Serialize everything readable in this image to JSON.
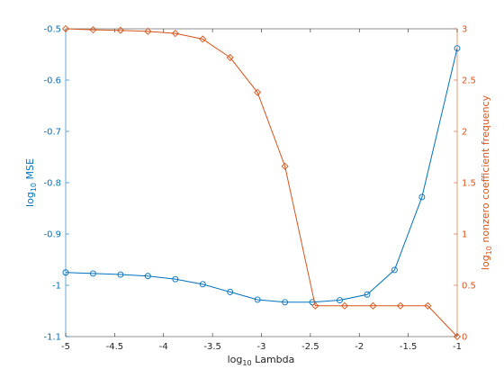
{
  "chart_data": {
    "type": "line",
    "x_axis": {
      "label_main": "log",
      "label_sub": "10",
      "label_rest": " Lambda",
      "range": [
        -5,
        -1
      ],
      "ticks": [
        -5,
        -4.5,
        -4,
        -3.5,
        -3,
        -2.5,
        -2,
        -1.5,
        -1
      ],
      "tick_labels": [
        "-5",
        "-4.5",
        "-4",
        "-3.5",
        "-3",
        "-2.5",
        "-2",
        "-1.5",
        "-1"
      ]
    },
    "y_left": {
      "label_main": "log",
      "label_sub": "10",
      "label_rest": " MSE",
      "range": [
        -1.1,
        -0.5
      ],
      "ticks": [
        -1.1,
        -1,
        -0.9,
        -0.8,
        -0.7,
        -0.6,
        -0.5
      ],
      "tick_labels": [
        "-1.1",
        "-1",
        "-0.9",
        "-0.8",
        "-0.7",
        "-0.6",
        "-0.5"
      ],
      "color": "#0072bd"
    },
    "y_right": {
      "label_main": "log",
      "label_sub": "10",
      "label_rest": " nonzero coefficient frequency",
      "range": [
        0,
        3
      ],
      "ticks": [
        0,
        0.5,
        1,
        1.5,
        2,
        2.5,
        3
      ],
      "tick_labels": [
        "0",
        "0.5",
        "1",
        "1.5",
        "2",
        "2.5",
        "3"
      ],
      "color": "#d95319"
    },
    "x": [
      -5,
      -4.72,
      -4.44,
      -4.16,
      -3.88,
      -3.6,
      -3.32,
      -3.04,
      -2.76,
      -2.48,
      -2.2,
      -1.92,
      -1.64,
      -1.36,
      -1.08
    ],
    "series": [
      {
        "axis": "left",
        "color": "#0072bd",
        "marker": "circle",
        "x": [
          -5,
          -4.72,
          -4.44,
          -4.16,
          -3.88,
          -3.6,
          -3.32,
          -3.04,
          -2.76,
          -2.48,
          -2.2,
          -1.92,
          -1.64,
          -1.36,
          -1
        ],
        "values": [
          -0.975,
          -0.977,
          -0.979,
          -0.982,
          -0.988,
          -0.998,
          -1.013,
          -1.028,
          -1.033,
          -1.033,
          -1.029,
          -1.018,
          -0.97,
          -0.828,
          -0.538
        ]
      },
      {
        "axis": "right",
        "color": "#d95319",
        "marker": "diamond",
        "x": [
          -5,
          -4.72,
          -4.44,
          -4.16,
          -3.88,
          -3.6,
          -3.32,
          -3.04,
          -2.76,
          -2.45,
          -2.15,
          -1.86,
          -1.58,
          -1.3,
          -1
        ],
        "values": [
          3.0,
          2.99,
          2.985,
          2.975,
          2.955,
          2.9,
          2.72,
          2.38,
          1.66,
          0.3,
          0.3,
          0.3,
          0.3,
          0.3,
          0.0
        ]
      }
    ],
    "grid": false,
    "legend": "none"
  }
}
